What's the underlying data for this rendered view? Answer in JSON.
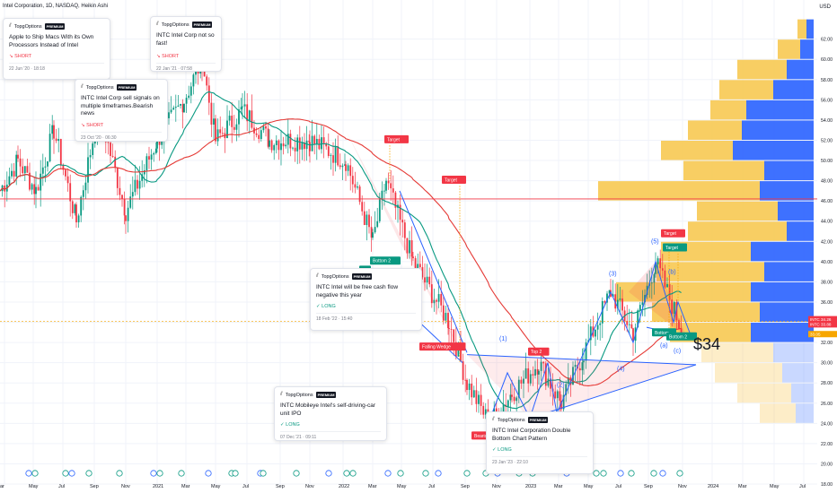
{
  "header": {
    "symbol": "Intel Corporation, 1D, NASDAQ, Heikin Ashi",
    "currency": "USD"
  },
  "chart_data": {
    "type": "candlestick",
    "y_axis": {
      "min": 18,
      "max": 64,
      "ticks": [
        18,
        20,
        22,
        24,
        26,
        28,
        30,
        32,
        34,
        36,
        38,
        40,
        42,
        44,
        46,
        48,
        50,
        52,
        54,
        56,
        58,
        60,
        62
      ]
    },
    "x_axis": {
      "labels": [
        "ar",
        "May",
        "Jul",
        "Sep",
        "Nov",
        "2021",
        "Mar",
        "May",
        "Jul",
        "Sep",
        "Nov",
        "2022",
        "Mar",
        "May",
        "Jul",
        "Sep",
        "Nov",
        "2023",
        "Mar",
        "May",
        "Jul",
        "Sep",
        "Nov",
        "2024",
        "Mar",
        "May",
        "Jul"
      ]
    },
    "price_labels": [
      {
        "text": "INTC",
        "value": 34.26,
        "sub": "34.26",
        "color": "#f23645"
      },
      {
        "text": "INTC",
        "value": 33.88,
        "sub": "33.88",
        "color": "#f23645"
      },
      {
        "text": "",
        "value": 33.05,
        "sub": "33.05",
        "color": "#f7a600"
      }
    ],
    "horizontal_line": {
      "value": 46.2,
      "color": "#f23645"
    },
    "big_label": "$34",
    "wave_labels": [
      "(1)",
      "(2)",
      "(3)",
      "(4)",
      "(5)",
      "(a)",
      "(b)",
      "(c)"
    ],
    "pattern_labels": {
      "target": "Target",
      "bottom2": "Bottom 2",
      "falling_wedge": "Falling Wedge",
      "top2": "Top 2",
      "bearish": "Bearish",
      "bottom": "Bottom"
    },
    "volume_profile_levels": [
      24,
      26,
      28,
      30,
      32,
      34,
      36,
      38,
      40,
      42,
      44,
      46,
      48,
      50,
      52,
      54,
      56,
      58,
      60,
      62
    ]
  },
  "ideas": [
    {
      "author": "TopgOptions",
      "badge": "PREMIUM",
      "title": "Apple to Ship Macs With its Own Processors Instead of Intel",
      "direction": "SHORT",
      "time": "22 Jun '20 · 18:18"
    },
    {
      "author": "TopgOptions",
      "badge": "PREMIUM",
      "title": "INTC Intel Corp not so fast!",
      "direction": "SHORT",
      "time": "22 Jan '21 · 07:58"
    },
    {
      "author": "TopgOptions",
      "badge": "PREMIUM",
      "title": "INTC Intel Corp sell signals on multiple timeframes.Bearish news",
      "direction": "SHORT",
      "time": "23 Oct '20 · 06:30"
    },
    {
      "author": "TopgOptions",
      "badge": "PREMIUM",
      "title": "INTC Intel will be free cash flow negative this year",
      "direction": "LONG",
      "time": "18 Feb '22 · 15:40"
    },
    {
      "author": "TopgOptions",
      "badge": "PREMIUM",
      "title": "INTC  Mobileye Intel's self-driving-car unit IPO",
      "direction": "LONG",
      "time": "07 Dec '21 · 09:11"
    },
    {
      "author": "TopgOptions",
      "badge": "PREMIUM",
      "title": "INTC Intel Corporation Double Bottom Chart Pattern",
      "direction": "LONG",
      "time": "23 Jan '23 · 22:10"
    }
  ],
  "colors": {
    "candle_up": "#089981",
    "candle_down": "#f23645",
    "ma_short": "#089981",
    "ma_long": "#e53935",
    "trend_blue": "#2962ff",
    "vp_up": "#2962ff",
    "vp_down": "#f7c548"
  }
}
